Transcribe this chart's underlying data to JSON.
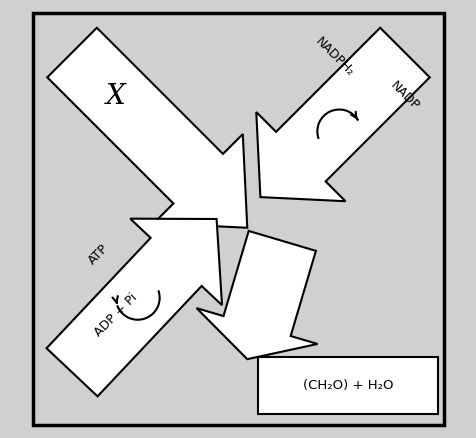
{
  "background_color": "#d0d0d0",
  "border_color": "#000000",
  "arrow_color": "#ffffff",
  "arrow_edge_color": "#000000",
  "label_X": "X",
  "label_NADPH2": "NADPH₂",
  "label_NADP": "NADP",
  "label_ATP": "ATP",
  "label_ADP": "ADP + Pi",
  "label_product": "(CH₂O) + H₂O",
  "box_color": "#ffffff",
  "figsize": [
    4.77,
    4.38
  ],
  "dpi": 100
}
